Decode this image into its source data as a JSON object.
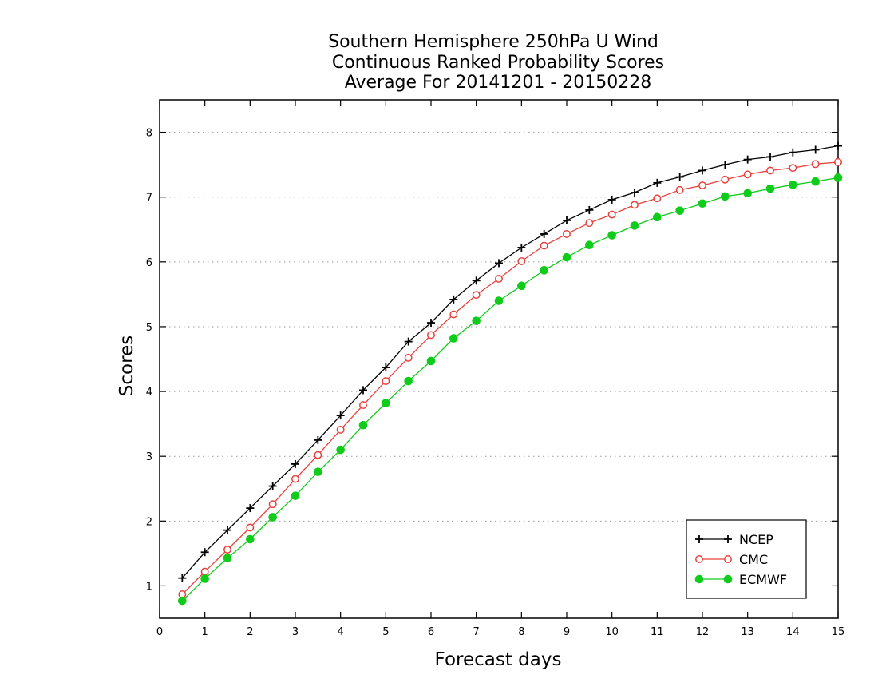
{
  "chart_data": {
    "type": "line",
    "title": [
      "Southern Hemisphere 250hPa U Wind",
      "Continuous Ranked Probability Scores",
      "Average For 20141201 - 20150228"
    ],
    "xlabel": "Forecast days",
    "ylabel": "Scores",
    "xlim": [
      0,
      15
    ],
    "ylim": [
      0.5,
      8.5
    ],
    "xticks": [
      0,
      1,
      2,
      3,
      4,
      5,
      6,
      7,
      8,
      9,
      10,
      11,
      12,
      13,
      14,
      15
    ],
    "yticks": [
      1,
      2,
      3,
      4,
      5,
      6,
      7,
      8
    ],
    "grid": "horizontal-dotted",
    "legend_position": "bottom-right",
    "x": [
      0.5,
      1,
      1.5,
      2,
      2.5,
      3,
      3.5,
      4,
      4.5,
      5,
      5.5,
      6,
      6.5,
      7,
      7.5,
      8,
      8.5,
      9,
      9.5,
      10,
      10.5,
      11,
      11.5,
      12,
      12.5,
      13,
      13.5,
      14,
      14.5,
      15
    ],
    "series": [
      {
        "name": "NCEP",
        "color": "#000000",
        "marker": "plus",
        "values": [
          1.12,
          1.52,
          1.86,
          2.2,
          2.54,
          2.88,
          3.25,
          3.63,
          4.02,
          4.37,
          4.77,
          5.06,
          5.42,
          5.71,
          5.98,
          6.22,
          6.43,
          6.64,
          6.8,
          6.96,
          7.07,
          7.22,
          7.31,
          7.41,
          7.5,
          7.58,
          7.62,
          7.69,
          7.73,
          7.79
        ]
      },
      {
        "name": "CMC",
        "color": "#e8413c",
        "marker": "open-circle",
        "values": [
          0.87,
          1.22,
          1.56,
          1.9,
          2.26,
          2.65,
          3.02,
          3.41,
          3.79,
          4.16,
          4.52,
          4.87,
          5.19,
          5.49,
          5.74,
          6.01,
          6.25,
          6.43,
          6.6,
          6.73,
          6.88,
          6.98,
          7.11,
          7.18,
          7.27,
          7.35,
          7.41,
          7.45,
          7.51,
          7.54
        ]
      },
      {
        "name": "ECMWF",
        "color": "#0fcc1a",
        "marker": "filled-circle",
        "values": [
          0.77,
          1.11,
          1.43,
          1.72,
          2.06,
          2.39,
          2.76,
          3.1,
          3.48,
          3.82,
          4.16,
          4.47,
          4.82,
          5.09,
          5.4,
          5.63,
          5.87,
          6.07,
          6.26,
          6.41,
          6.56,
          6.69,
          6.79,
          6.9,
          7.01,
          7.06,
          7.13,
          7.19,
          7.24,
          7.3
        ]
      }
    ]
  }
}
